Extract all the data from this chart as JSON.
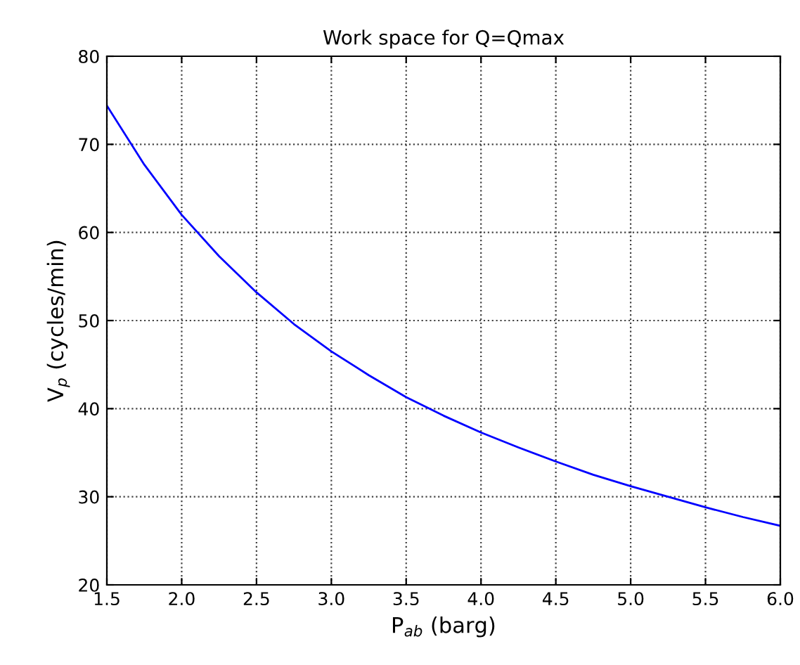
{
  "chart_data": {
    "type": "line",
    "title": "Work space for Q=Qmax",
    "xlabel": "P$_{ab}$ (barg)",
    "ylabel": "V$_{p}$ (cycles/min)",
    "x": [
      1.5,
      1.75,
      2.0,
      2.25,
      2.5,
      2.75,
      3.0,
      3.25,
      3.5,
      3.75,
      4.0,
      4.25,
      4.5,
      4.75,
      5.0,
      5.25,
      5.5,
      5.75,
      6.0
    ],
    "series": [
      {
        "color": "#0000ff",
        "values": [
          74.4,
          67.7,
          62.0,
          57.3,
          53.2,
          49.6,
          46.5,
          43.8,
          41.3,
          39.2,
          37.3,
          35.6,
          34.0,
          32.5,
          31.2,
          30.0,
          28.8,
          27.7,
          26.7
        ]
      }
    ],
    "xlim": [
      1.5,
      6.0
    ],
    "ylim": [
      20,
      80
    ],
    "xticks": [
      1.5,
      {
        "value": 2,
        "label": "2.0"
      },
      2.5,
      {
        "value": 3,
        "label": "3.0"
      },
      3.5,
      {
        "value": 4,
        "label": "4.0"
      },
      4.5,
      {
        "value": 5,
        "label": "5.0"
      },
      5.5,
      {
        "value": 6,
        "label": "6.0"
      }
    ],
    "yticks": [
      20,
      30,
      40,
      50,
      60,
      70,
      80
    ],
    "grid": true,
    "line_style": "solid",
    "marker": "none"
  }
}
